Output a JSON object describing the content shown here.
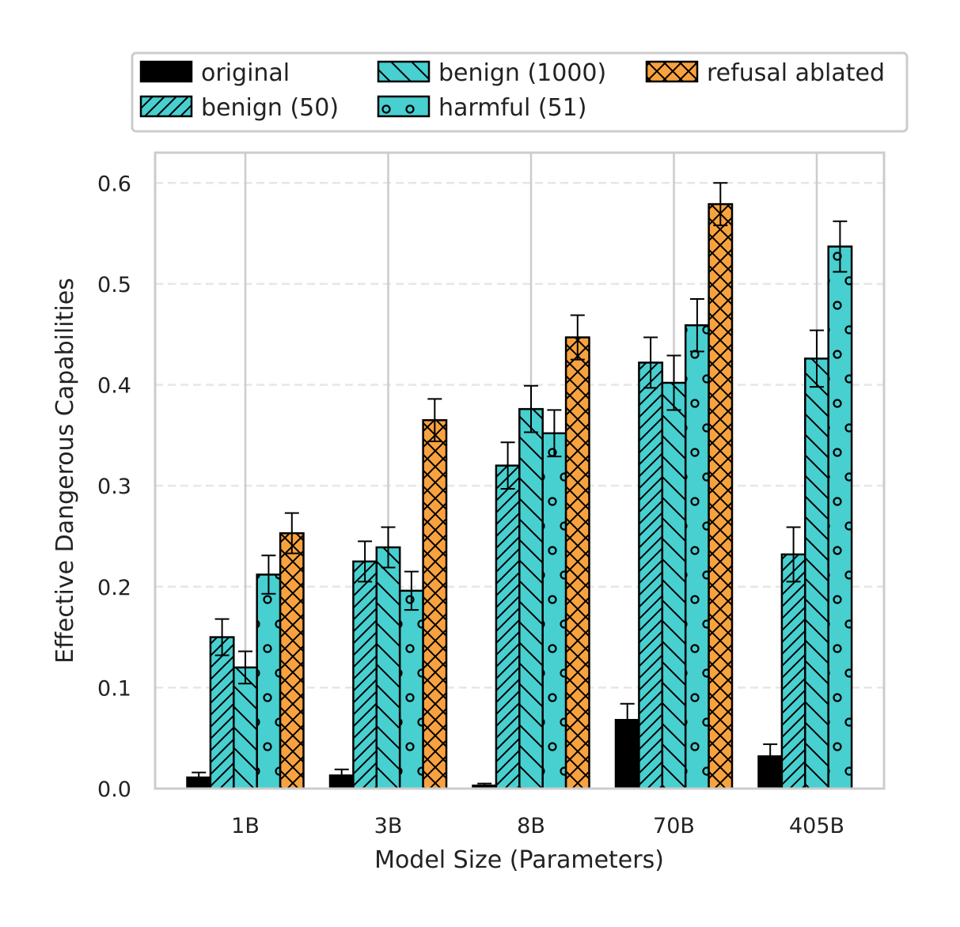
{
  "chart_data": {
    "type": "bar",
    "title": "",
    "xlabel": "Model Size (Parameters)",
    "ylabel": "Effective Dangerous Capabilities",
    "categories": [
      "1B",
      "3B",
      "8B",
      "70B",
      "405B"
    ],
    "ylim": [
      0,
      0.63
    ],
    "yticks": [
      "0.0",
      "0.1",
      "0.2",
      "0.3",
      "0.4",
      "0.5",
      "0.6"
    ],
    "legend_position": "top",
    "series": [
      {
        "name": "original",
        "color": "#000000",
        "hatch": "none",
        "values": [
          0.011,
          0.013,
          0.003,
          0.068,
          0.032
        ],
        "errors": [
          0.005,
          0.006,
          0.002,
          0.016,
          0.012
        ]
      },
      {
        "name": "benign (50)",
        "color": "#48cfd0",
        "hatch": "diagonal-forward",
        "values": [
          0.15,
          0.225,
          0.32,
          0.422,
          0.232
        ],
        "errors": [
          0.018,
          0.02,
          0.023,
          0.025,
          0.027
        ]
      },
      {
        "name": "benign (1000)",
        "color": "#48cfd0",
        "hatch": "diagonal-back",
        "values": [
          0.12,
          0.239,
          0.376,
          0.402,
          0.426
        ],
        "errors": [
          0.016,
          0.02,
          0.023,
          0.027,
          0.028
        ]
      },
      {
        "name": "harmful (51)",
        "color": "#48cfd0",
        "hatch": "circles",
        "values": [
          0.212,
          0.196,
          0.352,
          0.459,
          0.537
        ],
        "errors": [
          0.019,
          0.019,
          0.023,
          0.026,
          0.025
        ]
      },
      {
        "name": "refusal ablated",
        "color": "#f7a23f",
        "hatch": "crosshatch",
        "values": [
          0.253,
          0.365,
          0.447,
          0.579,
          null
        ],
        "errors": [
          0.02,
          0.021,
          0.022,
          0.021,
          null
        ]
      }
    ]
  }
}
